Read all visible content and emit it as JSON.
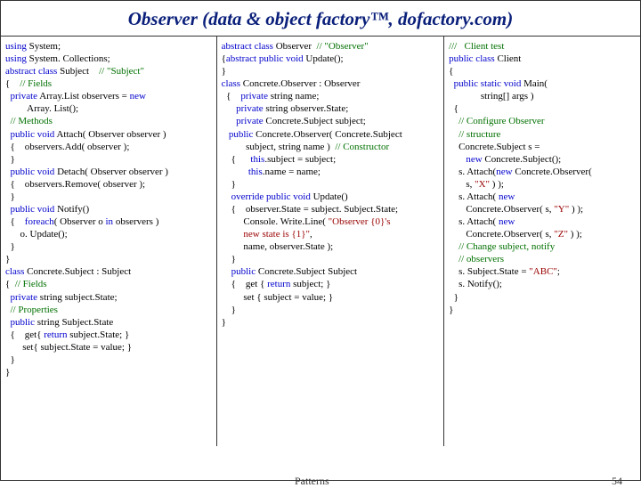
{
  "title": "Observer (data & object factory™, dofactory.com)",
  "footer": {
    "label": "Patterns",
    "page": "54"
  },
  "code": {
    "col1": [
      {
        "t": "using",
        "c": "kw"
      },
      {
        "t": " System;\n"
      },
      {
        "t": "using",
        "c": "kw"
      },
      {
        "t": " System. Collections;\n"
      },
      {
        "t": "abstract class",
        "c": "kw"
      },
      {
        "t": " Subject    "
      },
      {
        "t": "// \"Subject\"",
        "c": "cm"
      },
      {
        "t": "\n"
      },
      {
        "t": "{    "
      },
      {
        "t": "// Fields",
        "c": "cm"
      },
      {
        "t": "\n"
      },
      {
        "t": "  "
      },
      {
        "t": "private",
        "c": "kw"
      },
      {
        "t": " Array.List observers = "
      },
      {
        "t": "new",
        "c": "kw"
      },
      {
        "t": "\n"
      },
      {
        "t": "         Array. List();\n"
      },
      {
        "t": "  "
      },
      {
        "t": "// Methods",
        "c": "cm"
      },
      {
        "t": "\n"
      },
      {
        "t": "  "
      },
      {
        "t": "public void",
        "c": "kw"
      },
      {
        "t": " Attach( Observer observer )\n"
      },
      {
        "t": "  {    observers.Add( observer );\n"
      },
      {
        "t": "  }\n"
      },
      {
        "t": "  "
      },
      {
        "t": "public void",
        "c": "kw"
      },
      {
        "t": " Detach( Observer observer )\n"
      },
      {
        "t": "  {    observers.Remove( observer );\n"
      },
      {
        "t": "  }\n"
      },
      {
        "t": "  "
      },
      {
        "t": "public void",
        "c": "kw"
      },
      {
        "t": " Notify()\n"
      },
      {
        "t": "  {    "
      },
      {
        "t": "foreach",
        "c": "kw"
      },
      {
        "t": "( Observer o "
      },
      {
        "t": "in",
        "c": "kw"
      },
      {
        "t": " observers )\n"
      },
      {
        "t": "      o. Update();\n"
      },
      {
        "t": "  }\n"
      },
      {
        "t": "}\n"
      },
      {
        "t": "class",
        "c": "kw"
      },
      {
        "t": " Concrete.Subject : Subject\n"
      },
      {
        "t": "{  "
      },
      {
        "t": "// Fields",
        "c": "cm"
      },
      {
        "t": "\n"
      },
      {
        "t": "  "
      },
      {
        "t": "private",
        "c": "kw"
      },
      {
        "t": " string subject.State;\n"
      },
      {
        "t": "  "
      },
      {
        "t": "// Properties",
        "c": "cm"
      },
      {
        "t": "\n"
      },
      {
        "t": "  "
      },
      {
        "t": "public",
        "c": "kw"
      },
      {
        "t": " string Subject.State\n"
      },
      {
        "t": "  {    get{ "
      },
      {
        "t": "return",
        "c": "kw"
      },
      {
        "t": " subject.State; }\n"
      },
      {
        "t": "       set{ subject.State = value; }\n"
      },
      {
        "t": "  }\n"
      },
      {
        "t": "}\n"
      }
    ],
    "col2": [
      {
        "t": "abstract class",
        "c": "kw"
      },
      {
        "t": " Observer  "
      },
      {
        "t": "// \"Observer\"",
        "c": "cm"
      },
      {
        "t": "\n"
      },
      {
        "t": "{"
      },
      {
        "t": "abstract public void",
        "c": "kw"
      },
      {
        "t": " Update();\n"
      },
      {
        "t": "}\n"
      },
      {
        "t": "class",
        "c": "kw"
      },
      {
        "t": " Concrete.Observer : Observer\n"
      },
      {
        "t": "  {    "
      },
      {
        "t": "private",
        "c": "kw"
      },
      {
        "t": " string name;\n"
      },
      {
        "t": "      "
      },
      {
        "t": "private",
        "c": "kw"
      },
      {
        "t": " string observer.State;\n"
      },
      {
        "t": "      "
      },
      {
        "t": "private",
        "c": "kw"
      },
      {
        "t": " Concrete.Subject subject;\n"
      },
      {
        "t": "   "
      },
      {
        "t": "public",
        "c": "kw"
      },
      {
        "t": " Concrete.Observer( Concrete.Subject\n"
      },
      {
        "t": "          subject, string name )  "
      },
      {
        "t": "// Constructor",
        "c": "cm"
      },
      {
        "t": "\n"
      },
      {
        "t": "    {      "
      },
      {
        "t": "this",
        "c": "kw"
      },
      {
        "t": ".subject = subject;\n"
      },
      {
        "t": "           "
      },
      {
        "t": "this",
        "c": "kw"
      },
      {
        "t": ".name = name;\n"
      },
      {
        "t": "    }\n"
      },
      {
        "t": "    "
      },
      {
        "t": "override public void",
        "c": "kw"
      },
      {
        "t": " Update()\n"
      },
      {
        "t": "    {    observer.State = subject. Subject.State;\n"
      },
      {
        "t": "         Console. Write.Line( "
      },
      {
        "t": "\"Observer {0}'s",
        "c": "str"
      },
      {
        "t": "\n"
      },
      {
        "t": "         "
      },
      {
        "t": "new state is {1}\"",
        "c": "str"
      },
      {
        "t": ",\n"
      },
      {
        "t": "         name, observer.State );\n"
      },
      {
        "t": "    }\n"
      },
      {
        "t": "    "
      },
      {
        "t": "public",
        "c": "kw"
      },
      {
        "t": " Concrete.Subject Subject\n"
      },
      {
        "t": "    {    get { "
      },
      {
        "t": "return",
        "c": "kw"
      },
      {
        "t": " subject; }\n"
      },
      {
        "t": "         set { subject = value; }\n"
      },
      {
        "t": "    }\n"
      },
      {
        "t": "}\n"
      }
    ],
    "col3": [
      {
        "t": "///   Client test",
        "c": "cm"
      },
      {
        "t": "\n"
      },
      {
        "t": "public class",
        "c": "kw"
      },
      {
        "t": " Client\n"
      },
      {
        "t": "{\n"
      },
      {
        "t": "  "
      },
      {
        "t": "public static void",
        "c": "kw"
      },
      {
        "t": " Main(\n"
      },
      {
        "t": "             string[] args )\n"
      },
      {
        "t": "  {\n"
      },
      {
        "t": "    "
      },
      {
        "t": "// Configure Observer",
        "c": "cm"
      },
      {
        "t": "\n"
      },
      {
        "t": "    "
      },
      {
        "t": "// structure",
        "c": "cm"
      },
      {
        "t": "\n"
      },
      {
        "t": "    Concrete.Subject s =\n"
      },
      {
        "t": "       "
      },
      {
        "t": "new",
        "c": "kw"
      },
      {
        "t": " Concrete.Subject();\n"
      },
      {
        "t": "    s. Attach("
      },
      {
        "t": "new",
        "c": "kw"
      },
      {
        "t": " Concrete.Observer(\n"
      },
      {
        "t": "       s, "
      },
      {
        "t": "\"X\"",
        "c": "str"
      },
      {
        "t": " ) );\n"
      },
      {
        "t": "    s. Attach( "
      },
      {
        "t": "new",
        "c": "kw"
      },
      {
        "t": "\n"
      },
      {
        "t": "       Concrete.Observer( s, "
      },
      {
        "t": "\"Y\"",
        "c": "str"
      },
      {
        "t": " ) );\n"
      },
      {
        "t": "    s. Attach( "
      },
      {
        "t": "new",
        "c": "kw"
      },
      {
        "t": "\n"
      },
      {
        "t": "       Concrete.Observer( s, "
      },
      {
        "t": "\"Z\"",
        "c": "str"
      },
      {
        "t": " ) );\n"
      },
      {
        "t": "    "
      },
      {
        "t": "// Change subject, notify",
        "c": "cm"
      },
      {
        "t": "\n"
      },
      {
        "t": "    "
      },
      {
        "t": "// observers",
        "c": "cm"
      },
      {
        "t": "\n"
      },
      {
        "t": "    s. Subject.State = "
      },
      {
        "t": "\"ABC\"",
        "c": "str"
      },
      {
        "t": ";\n"
      },
      {
        "t": "    s. Notify();\n"
      },
      {
        "t": "  }\n"
      },
      {
        "t": "}\n"
      }
    ]
  }
}
